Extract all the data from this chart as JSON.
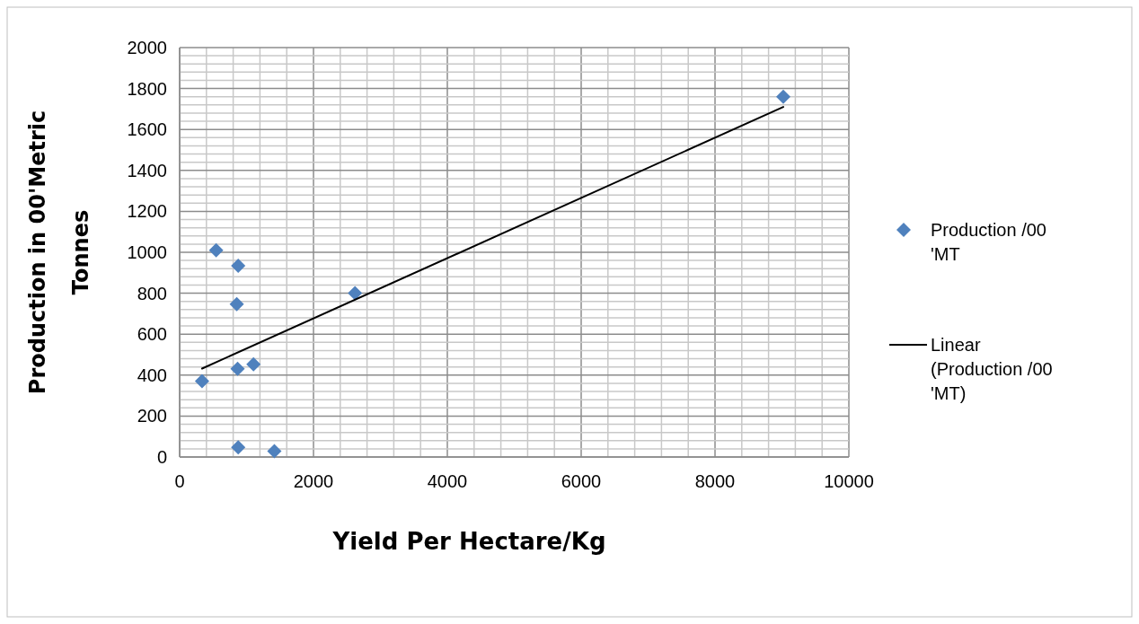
{
  "chart_data": {
    "type": "scatter",
    "xlabel": "Yield Per Hectare/Kg",
    "ylabel": "Production in 00'Metric Tonnes",
    "xlim": [
      0,
      10000
    ],
    "ylim": [
      0,
      2000
    ],
    "xticks": [
      0,
      {
        "value": 400,
        "label": null
      },
      {
        "value": 800,
        "label": null
      },
      {
        "value": 1200,
        "label": null
      },
      {
        "value": 1600,
        "label": null
      },
      2000,
      {
        "value": 2400,
        "label": null
      },
      {
        "value": 2800,
        "label": null
      },
      {
        "value": 3200,
        "label": null
      },
      {
        "value": 3600,
        "label": null
      },
      4000,
      {
        "value": 4400,
        "label": null
      },
      {
        "value": 4800,
        "label": null
      },
      {
        "value": 5200,
        "label": null
      },
      {
        "value": 5600,
        "label": null
      },
      6000,
      {
        "value": 6400,
        "label": null
      },
      {
        "value": 6800,
        "label": null
      },
      {
        "value": 7200,
        "label": null
      },
      {
        "value": 7600,
        "label": null
      },
      8000,
      {
        "value": 8400,
        "label": null
      },
      {
        "value": 8800,
        "label": null
      },
      {
        "value": 9200,
        "label": null
      },
      {
        "value": 9600,
        "label": null
      },
      10000
    ],
    "yticks": [
      0,
      {
        "value": 40,
        "label": null
      },
      {
        "value": 80,
        "label": null
      },
      {
        "value": 120,
        "label": null
      },
      {
        "value": 160,
        "label": null
      },
      200,
      {
        "value": 240,
        "label": null
      },
      {
        "value": 280,
        "label": null
      },
      {
        "value": 320,
        "label": null
      },
      {
        "value": 360,
        "label": null
      },
      400,
      {
        "value": 440,
        "label": null
      },
      {
        "value": 480,
        "label": null
      },
      {
        "value": 520,
        "label": null
      },
      {
        "value": 560,
        "label": null
      },
      600,
      {
        "value": 640,
        "label": null
      },
      {
        "value": 680,
        "label": null
      },
      {
        "value": 720,
        "label": null
      },
      {
        "value": 760,
        "label": null
      },
      800,
      {
        "value": 840,
        "label": null
      },
      {
        "value": 880,
        "label": null
      },
      {
        "value": 920,
        "label": null
      },
      {
        "value": 960,
        "label": null
      },
      1000,
      {
        "value": 1040,
        "label": null
      },
      {
        "value": 1080,
        "label": null
      },
      {
        "value": 1120,
        "label": null
      },
      {
        "value": 1160,
        "label": null
      },
      1200,
      {
        "value": 1240,
        "label": null
      },
      {
        "value": 1280,
        "label": null
      },
      {
        "value": 1320,
        "label": null
      },
      {
        "value": 1360,
        "label": null
      },
      1400,
      {
        "value": 1440,
        "label": null
      },
      {
        "value": 1480,
        "label": null
      },
      {
        "value": 1520,
        "label": null
      },
      {
        "value": 1560,
        "label": null
      },
      1600,
      {
        "value": 1640,
        "label": null
      },
      {
        "value": 1680,
        "label": null
      },
      {
        "value": 1720,
        "label": null
      },
      {
        "value": 1760,
        "label": null
      },
      1800,
      {
        "value": 1840,
        "label": null
      },
      {
        "value": 1880,
        "label": null
      },
      {
        "value": 1920,
        "label": null
      },
      {
        "value": 1960,
        "label": null
      },
      2000
    ],
    "grid": true,
    "legend": "right",
    "series": [
      {
        "name": "Production /00 'MT",
        "color": "#4f81bd",
        "marker": "diamond",
        "x": [
          545,
          875,
          853,
          866,
          1103,
          335,
          875,
          1415,
          2620,
          9020
        ],
        "values": [
          1010,
          934,
          747,
          431,
          453,
          371,
          47,
          29,
          800,
          1760
        ]
      },
      {
        "name": "Linear (Production /00 'MT)",
        "type": "line",
        "color": "#000000",
        "marker": "none",
        "line_style": "solid",
        "x": [
          335,
          9020
        ],
        "values": [
          432,
          1710
        ]
      }
    ]
  }
}
